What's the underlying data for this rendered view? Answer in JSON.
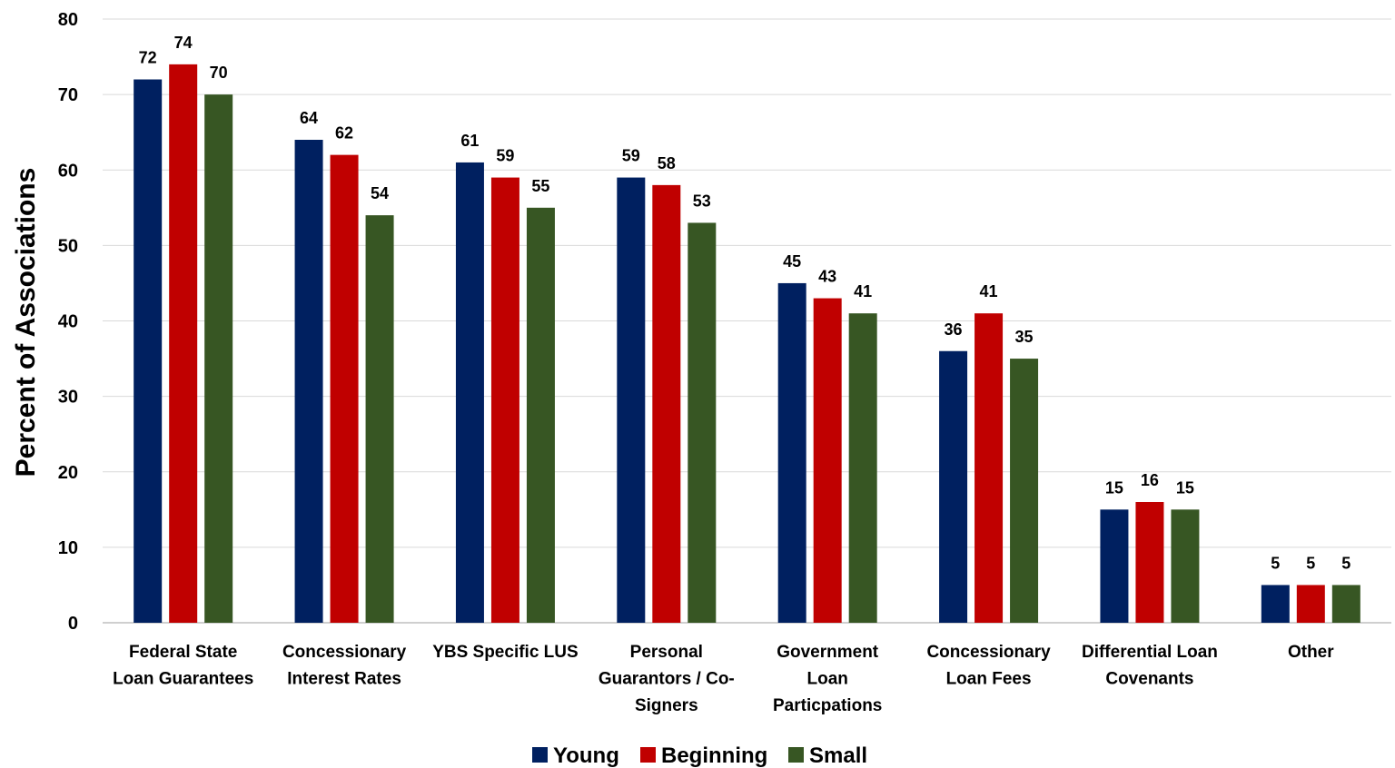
{
  "chart_data": {
    "type": "bar",
    "title": "",
    "xlabel": "",
    "ylabel": "Percent of Associations",
    "ylim": [
      0,
      80
    ],
    "yticks": [
      0,
      10,
      20,
      30,
      40,
      50,
      60,
      70,
      80
    ],
    "grid": true,
    "legend_position": "bottom",
    "categories": [
      [
        "Federal State",
        "Loan Guarantees"
      ],
      [
        "Concessionary",
        "Interest Rates"
      ],
      [
        "YBS Specific LUS"
      ],
      [
        "Personal",
        "Guarantors / Co-",
        "Signers"
      ],
      [
        "Government",
        "Loan",
        "Particpations"
      ],
      [
        "Concessionary",
        "Loan Fees"
      ],
      [
        "Differential Loan",
        "Covenants"
      ],
      [
        "Other"
      ]
    ],
    "series": [
      {
        "name": "Young",
        "color": "#002060",
        "values": [
          72,
          64,
          61,
          59,
          45,
          36,
          15,
          5
        ]
      },
      {
        "name": "Beginning",
        "color": "#C00000",
        "values": [
          74,
          62,
          59,
          58,
          43,
          41,
          16,
          5
        ]
      },
      {
        "name": "Small",
        "color": "#375623",
        "values": [
          70,
          54,
          55,
          53,
          41,
          35,
          15,
          5
        ]
      }
    ]
  }
}
